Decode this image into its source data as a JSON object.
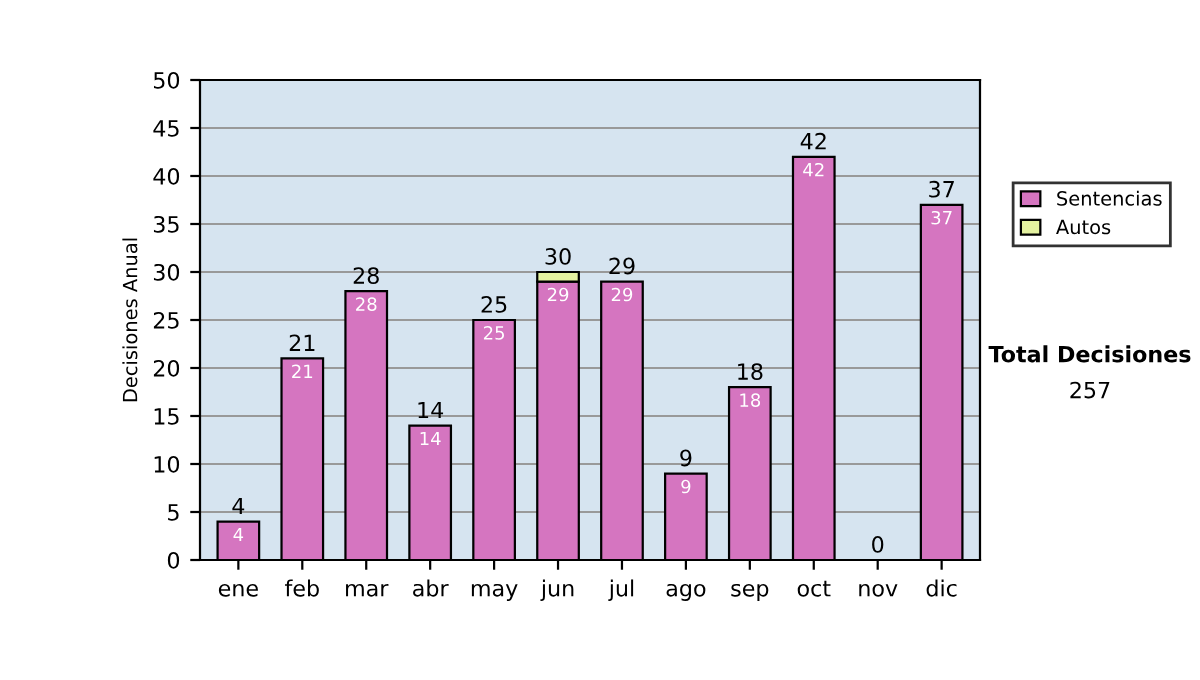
{
  "chart_data": {
    "type": "bar",
    "ylabel": "Decisiones Anual",
    "categories": [
      "ene",
      "feb",
      "mar",
      "abr",
      "may",
      "jun",
      "jul",
      "ago",
      "sep",
      "oct",
      "nov",
      "dic"
    ],
    "series": [
      {
        "name": "Sentencias",
        "color": "#d575c0",
        "values": [
          4,
          21,
          28,
          14,
          25,
          29,
          29,
          9,
          18,
          42,
          0,
          37
        ],
        "value_labels": [
          "4",
          "21",
          "28",
          "14",
          "25",
          "29",
          "29",
          "9",
          "18",
          "42",
          null,
          "37"
        ]
      },
      {
        "name": "Autos",
        "color": "#e4f2a0",
        "values": [
          0,
          0,
          0,
          0,
          0,
          1,
          0,
          0,
          0,
          0,
          0,
          0
        ]
      }
    ],
    "stacked": true,
    "totals": [
      "4",
      "21",
      "28",
      "14",
      "25",
      "30",
      "29",
      "9",
      "18",
      "42",
      "0",
      "37"
    ],
    "ylim": [
      0,
      50
    ],
    "yticks": [
      0,
      5,
      10,
      15,
      20,
      25,
      30,
      35,
      40,
      45,
      50
    ],
    "grid": "y",
    "legend": "right",
    "annotations": [
      "Total Decisiones",
      "257"
    ]
  }
}
